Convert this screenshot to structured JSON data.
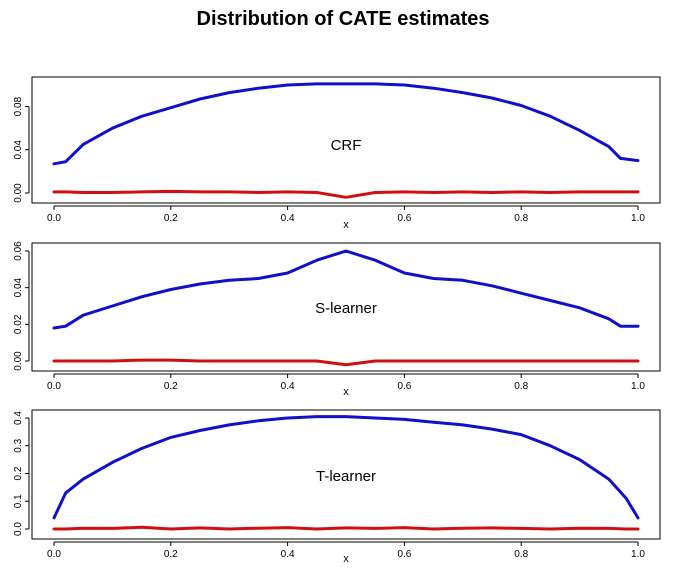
{
  "title": "Distribution of CATE estimates",
  "chart_data": [
    {
      "type": "line",
      "label": "CRF",
      "xlabel": "x",
      "xlim": [
        0,
        1
      ],
      "ylim": [
        0,
        0.1
      ],
      "x_ticks": [
        "0.0",
        "0.2",
        "0.4",
        "0.6",
        "0.8",
        "1.0"
      ],
      "y_ticks": [
        "0.00",
        "0.04",
        "0.08"
      ],
      "x": [
        0.0,
        0.02,
        0.05,
        0.1,
        0.15,
        0.2,
        0.25,
        0.3,
        0.35,
        0.4,
        0.45,
        0.5,
        0.55,
        0.6,
        0.65,
        0.7,
        0.75,
        0.8,
        0.85,
        0.9,
        0.95,
        0.97,
        1.0
      ],
      "series": [
        {
          "color": "#1010c8",
          "values": [
            0.027,
            0.029,
            0.045,
            0.06,
            0.071,
            0.079,
            0.087,
            0.093,
            0.097,
            0.1,
            0.101,
            0.101,
            0.101,
            0.1,
            0.097,
            0.093,
            0.088,
            0.081,
            0.071,
            0.058,
            0.043,
            0.032,
            0.03
          ]
        },
        {
          "color": "#d01010",
          "values": [
            0.001,
            0.001,
            0.0005,
            0.0005,
            0.001,
            0.0015,
            0.001,
            0.001,
            0.0005,
            0.001,
            0.0005,
            -0.004,
            0.0005,
            0.001,
            0.0005,
            0.001,
            0.0005,
            0.001,
            0.0005,
            0.001,
            0.001,
            0.001,
            0.001
          ]
        }
      ]
    },
    {
      "type": "line",
      "label": "S-learner",
      "xlabel": "x",
      "xlim": [
        0,
        1
      ],
      "ylim": [
        0,
        0.06
      ],
      "x_ticks": [
        "0.0",
        "0.2",
        "0.4",
        "0.6",
        "0.8",
        "1.0"
      ],
      "y_ticks": [
        "0.00",
        "0.02",
        "0.04",
        "0.06"
      ],
      "x": [
        0.0,
        0.02,
        0.05,
        0.1,
        0.15,
        0.2,
        0.25,
        0.3,
        0.35,
        0.4,
        0.45,
        0.5,
        0.55,
        0.6,
        0.65,
        0.7,
        0.75,
        0.8,
        0.85,
        0.9,
        0.95,
        0.97,
        1.0
      ],
      "series": [
        {
          "color": "#1010c8",
          "values": [
            0.018,
            0.019,
            0.025,
            0.03,
            0.035,
            0.039,
            0.042,
            0.044,
            0.045,
            0.048,
            0.055,
            0.06,
            0.055,
            0.048,
            0.045,
            0.044,
            0.041,
            0.037,
            0.033,
            0.029,
            0.023,
            0.019,
            0.019
          ]
        },
        {
          "color": "#d01010",
          "values": [
            0.0,
            0.0,
            0.0,
            0.0,
            0.0005,
            0.0005,
            0.0,
            0.0,
            0.0,
            0.0,
            0.0,
            -0.002,
            0.0,
            0.0,
            0.0,
            0.0,
            0.0,
            0.0,
            0.0,
            0.0,
            0.0,
            0.0,
            0.0
          ]
        }
      ]
    },
    {
      "type": "line",
      "label": "T-learner",
      "xlabel": "x",
      "xlim": [
        0,
        1
      ],
      "ylim": [
        0,
        0.4
      ],
      "x_ticks": [
        "0.0",
        "0.2",
        "0.4",
        "0.6",
        "0.8",
        "1.0"
      ],
      "y_ticks": [
        "0.0",
        "0.1",
        "0.2",
        "0.3",
        "0.4"
      ],
      "x": [
        0.0,
        0.02,
        0.05,
        0.1,
        0.15,
        0.2,
        0.25,
        0.3,
        0.35,
        0.4,
        0.45,
        0.5,
        0.55,
        0.6,
        0.65,
        0.7,
        0.75,
        0.8,
        0.85,
        0.9,
        0.95,
        0.98,
        1.0
      ],
      "series": [
        {
          "color": "#1010c8",
          "values": [
            0.04,
            0.13,
            0.18,
            0.24,
            0.29,
            0.33,
            0.355,
            0.375,
            0.39,
            0.4,
            0.405,
            0.405,
            0.4,
            0.395,
            0.385,
            0.375,
            0.36,
            0.34,
            0.3,
            0.25,
            0.18,
            0.11,
            0.04
          ]
        },
        {
          "color": "#d01010",
          "values": [
            0.0,
            0.0,
            0.003,
            0.002,
            0.006,
            0.0,
            0.004,
            0.0,
            0.003,
            0.005,
            0.0,
            0.004,
            0.002,
            0.005,
            0.0,
            0.003,
            0.004,
            0.002,
            0.0,
            0.003,
            0.002,
            0.0,
            0.0
          ]
        }
      ]
    }
  ]
}
